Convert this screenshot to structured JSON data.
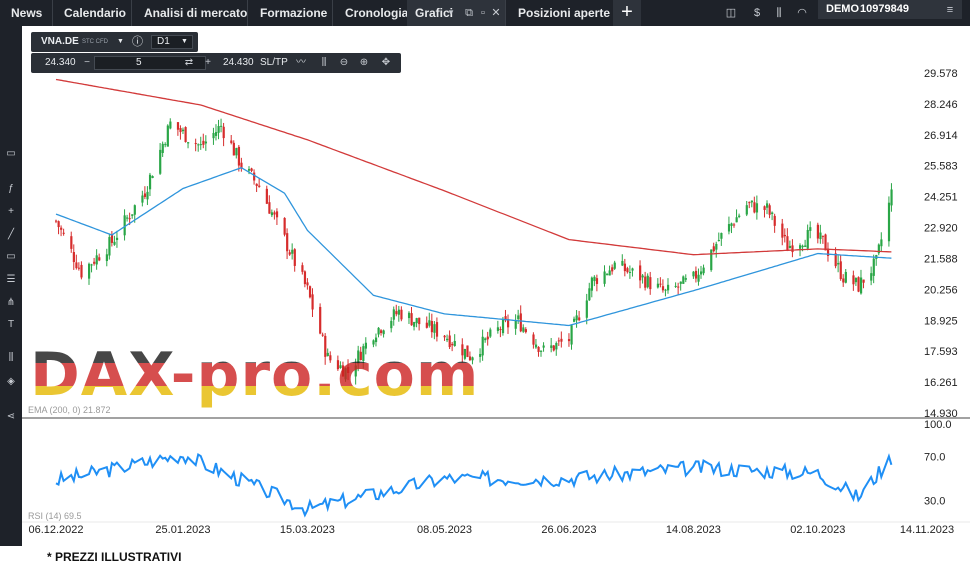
{
  "topbar": {
    "items": [
      "News",
      "Calendario",
      "Analisi di mercato",
      "Formazione",
      "Cronologia",
      "Grafici",
      "Posizioni aperte"
    ],
    "account_mode": "DEMO",
    "account_number": "10979849"
  },
  "widget": {
    "symbol": "VNA.DE",
    "symbol_type": "STC CFD",
    "timeframe": "D1",
    "sell_price": "24.340",
    "quantity": "5",
    "buy_price": "24.430",
    "sltp_label": "SL/TP"
  },
  "overlays": {
    "ema_label": "EMA (200, 0) 21.872",
    "rsi_label": "RSI (14) 69.5",
    "watermark": "DAX-pro.com"
  },
  "footnote": "* PREZZI ILLUSTRATIVI",
  "colors": {
    "up": "#2aa647",
    "down": "#d62c2c",
    "ema_long": "#d23a3a",
    "ema_short": "#2f95dc",
    "rsi": "#1f8ff5"
  },
  "chart_data": {
    "type": "candlestick",
    "symbol": "VNA.DE",
    "timeframe": "D1",
    "y_ticks": [
      "29.578",
      "28.246",
      "26.914",
      "25.583",
      "24.251",
      "22.920",
      "21.588",
      "20.256",
      "18.925",
      "17.593",
      "16.261",
      "14.930"
    ],
    "ylim": [
      14.93,
      29.578
    ],
    "x_ticks": [
      "06.12.2022",
      "25.01.2023",
      "15.03.2023",
      "08.05.2023",
      "26.06.2023",
      "14.08.2023",
      "02.10.2023",
      "14.11.2023"
    ],
    "rsi_ticks": [
      "100.0",
      "70.0",
      "30.0"
    ],
    "rsi_ylim": [
      0,
      100
    ],
    "close_anchors": [
      {
        "date": "06.12.2022",
        "close": 23.2
      },
      {
        "date": "16.12.2022",
        "close": 21.0
      },
      {
        "date": "28.12.2022",
        "close": 22.3
      },
      {
        "date": "10.01.2023",
        "close": 24.5
      },
      {
        "date": "20.01.2023",
        "close": 27.4
      },
      {
        "date": "01.02.2023",
        "close": 26.4
      },
      {
        "date": "09.02.2023",
        "close": 27.3
      },
      {
        "date": "17.02.2023",
        "close": 25.6
      },
      {
        "date": "24.02.2023",
        "close": 24.7
      },
      {
        "date": "06.03.2023",
        "close": 22.4
      },
      {
        "date": "15.03.2023",
        "close": 20.2
      },
      {
        "date": "23.03.2023",
        "close": 17.3
      },
      {
        "date": "31.03.2023",
        "close": 16.7
      },
      {
        "date": "10.04.2023",
        "close": 18.4
      },
      {
        "date": "20.04.2023",
        "close": 19.3
      },
      {
        "date": "28.04.2023",
        "close": 18.8
      },
      {
        "date": "08.05.2023",
        "close": 18.3
      },
      {
        "date": "18.05.2023",
        "close": 17.4
      },
      {
        "date": "30.05.2023",
        "close": 18.6
      },
      {
        "date": "06.06.2023",
        "close": 18.9
      },
      {
        "date": "16.06.2023",
        "close": 17.6
      },
      {
        "date": "26.06.2023",
        "close": 18.1
      },
      {
        "date": "05.07.2023",
        "close": 20.6
      },
      {
        "date": "14.07.2023",
        "close": 21.3
      },
      {
        "date": "24.07.2023",
        "close": 20.8
      },
      {
        "date": "03.08.2023",
        "close": 20.1
      },
      {
        "date": "14.08.2023",
        "close": 20.7
      },
      {
        "date": "24.08.2023",
        "close": 22.4
      },
      {
        "date": "04.09.2023",
        "close": 23.9
      },
      {
        "date": "12.09.2023",
        "close": 23.7
      },
      {
        "date": "20.09.2023",
        "close": 22.1
      },
      {
        "date": "29.09.2023",
        "close": 22.6
      },
      {
        "date": "04.10.2023",
        "close": 22.3
      },
      {
        "date": "12.10.2023",
        "close": 20.8
      },
      {
        "date": "18.10.2023",
        "close": 20.4
      },
      {
        "date": "25.10.2023",
        "close": 21.4
      },
      {
        "date": "31.10.2023",
        "close": 24.4
      }
    ],
    "ema_200": [
      {
        "date": "06.12.2022",
        "value": 29.3
      },
      {
        "date": "01.02.2023",
        "value": 28.2
      },
      {
        "date": "15.03.2023",
        "value": 26.7
      },
      {
        "date": "08.05.2023",
        "value": 24.5
      },
      {
        "date": "26.06.2023",
        "value": 22.4
      },
      {
        "date": "14.08.2023",
        "value": 21.75
      },
      {
        "date": "02.10.2023",
        "value": 22.0
      },
      {
        "date": "31.10.2023",
        "value": 21.872
      }
    ],
    "ema_short": [
      {
        "date": "06.12.2022",
        "value": 23.5
      },
      {
        "date": "28.12.2022",
        "value": 22.6
      },
      {
        "date": "25.01.2023",
        "value": 24.6
      },
      {
        "date": "17.02.2023",
        "value": 25.5
      },
      {
        "date": "06.03.2023",
        "value": 24.4
      },
      {
        "date": "15.03.2023",
        "value": 22.8
      },
      {
        "date": "10.04.2023",
        "value": 20.0
      },
      {
        "date": "08.05.2023",
        "value": 19.2
      },
      {
        "date": "26.06.2023",
        "value": 18.7
      },
      {
        "date": "14.08.2023",
        "value": 20.2
      },
      {
        "date": "02.10.2023",
        "value": 21.8
      },
      {
        "date": "31.10.2023",
        "value": 21.6
      }
    ],
    "rsi": [
      {
        "date": "06.12.2022",
        "value": 48
      },
      {
        "date": "25.01.2023",
        "value": 72
      },
      {
        "date": "15.03.2023",
        "value": 22
      },
      {
        "date": "08.05.2023",
        "value": 50
      },
      {
        "date": "26.06.2023",
        "value": 50
      },
      {
        "date": "14.08.2023",
        "value": 60
      },
      {
        "date": "02.10.2023",
        "value": 55
      },
      {
        "date": "18.10.2023",
        "value": 33
      },
      {
        "date": "31.10.2023",
        "value": 69.5
      }
    ]
  }
}
